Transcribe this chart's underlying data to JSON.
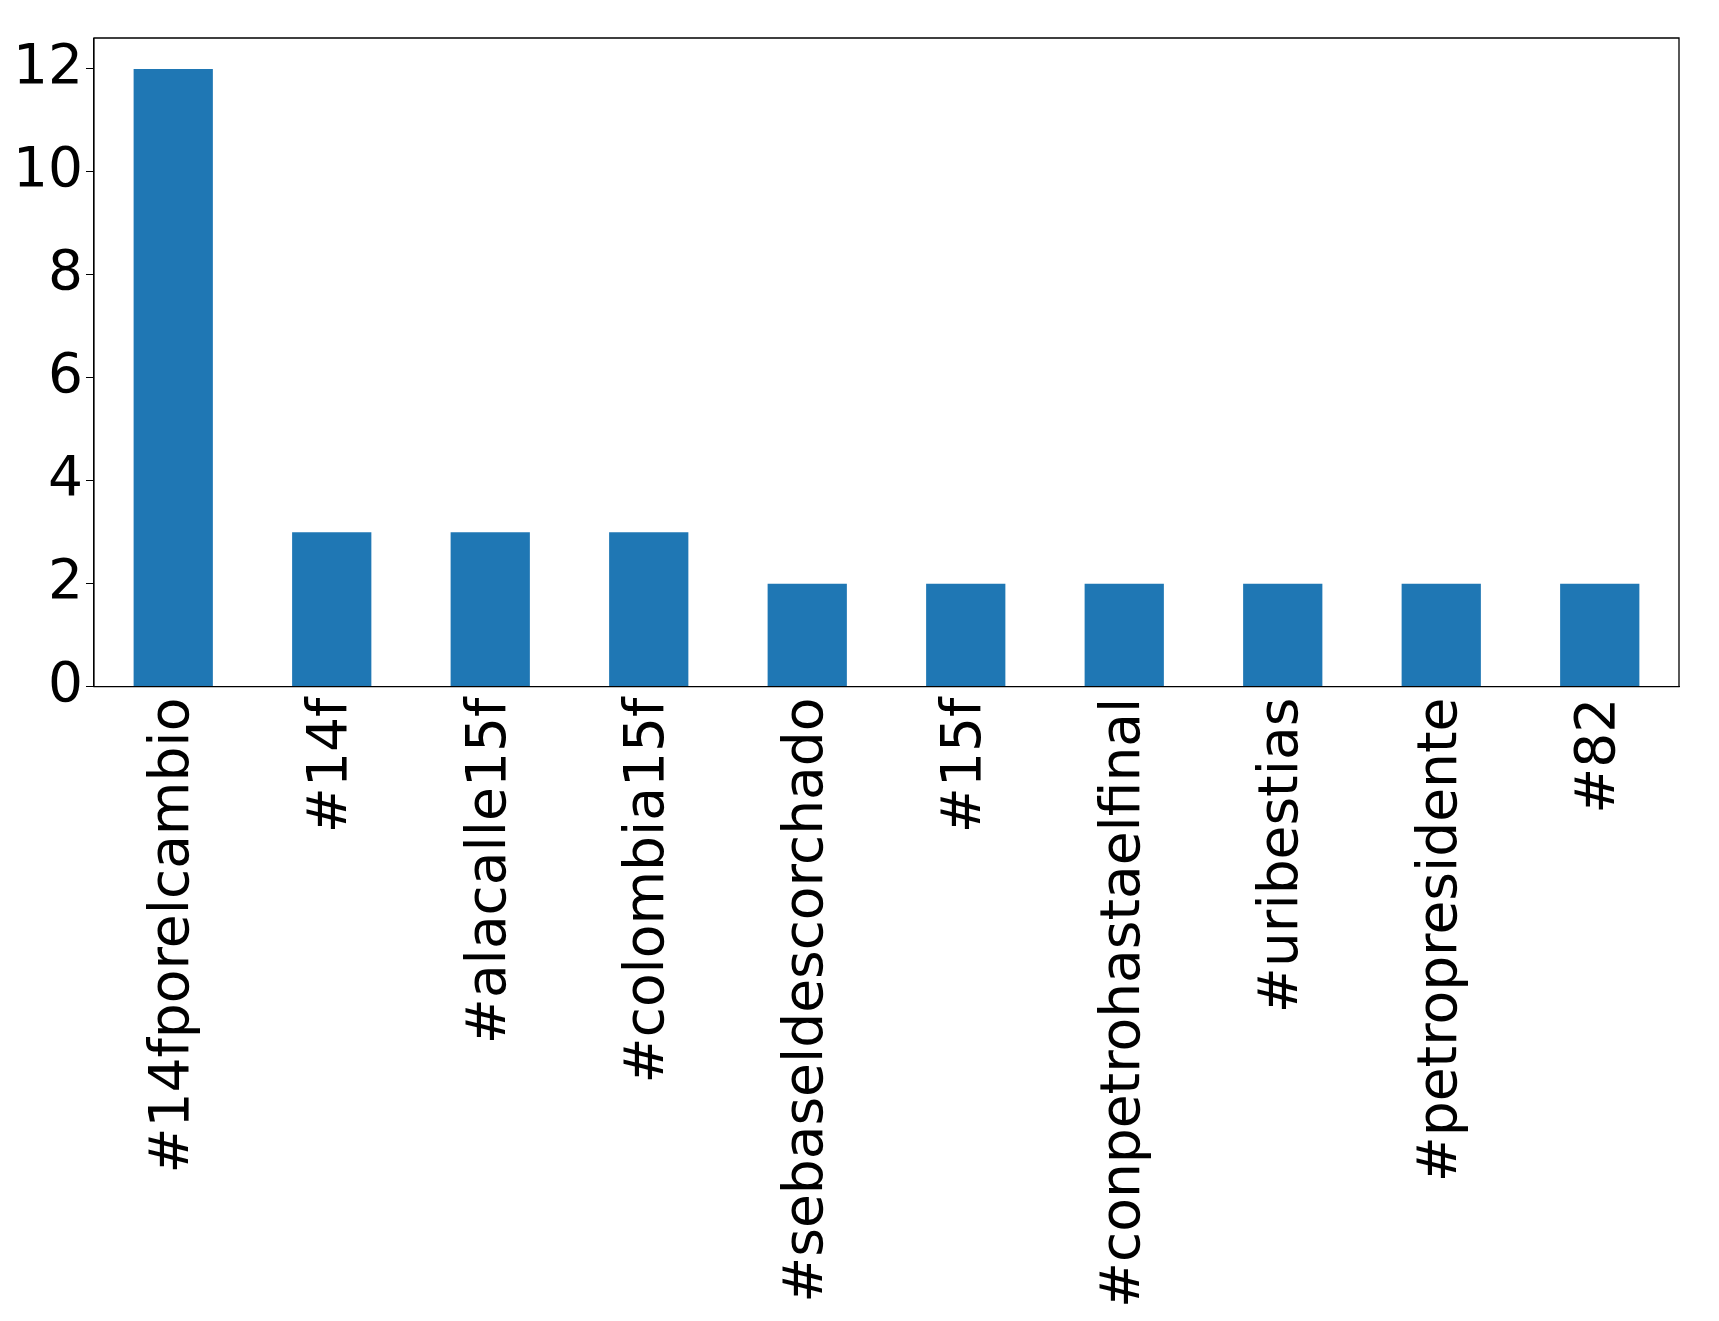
{
  "chart_data": {
    "type": "bar",
    "categories": [
      "#14fporelcambio",
      "#14f",
      "#alacalle15f",
      "#colombia15f",
      "#sebaseldescorchado",
      "#15f",
      "#conpetrohastaelfinal",
      "#uribestias",
      "#petropresidente",
      "#82"
    ],
    "values": [
      12,
      3,
      3,
      3,
      2,
      2,
      2,
      2,
      2,
      2
    ],
    "color": "#1f77b4",
    "ylim": [
      0,
      12.6
    ],
    "yticks": [
      0,
      2,
      4,
      6,
      8,
      10,
      12
    ],
    "grid": false,
    "legend": false
  }
}
